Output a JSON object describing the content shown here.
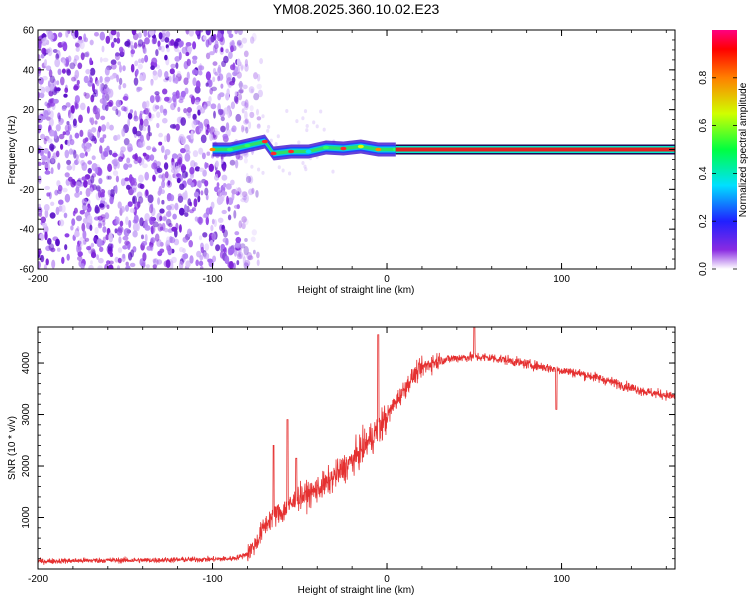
{
  "title": "YM08.2025.360.10.02.E23",
  "chart_data": [
    {
      "type": "heatmap",
      "xlabel": "Height of straight line (km)",
      "ylabel": "Frequency (Hz)",
      "xlim": [
        -200,
        165
      ],
      "ylim": [
        -60,
        60
      ],
      "x_ticks": [
        -200,
        -100,
        0,
        100
      ],
      "x_tick_labels": [
        "-200",
        "-100",
        "0",
        "100"
      ],
      "y_ticks": [
        60,
        40,
        20,
        0,
        -20,
        -40,
        -60
      ],
      "y_tick_labels": [
        "60",
        "40",
        "20",
        "0",
        "-20",
        "-40",
        "-60"
      ],
      "colorbar": {
        "label": "Normalized spectral amplitude",
        "range": [
          0,
          1
        ],
        "ticks": [
          0.0,
          0.2,
          0.4,
          0.6,
          0.8
        ],
        "tick_labels": [
          "0.0",
          "0.2",
          "0.4",
          "0.6",
          "0.8"
        ]
      },
      "noise_region_x": [
        -200,
        -80
      ],
      "signal_onset_x": -105,
      "steady_line_start_x": 5,
      "steady_line_freq": 0,
      "trace": [
        {
          "x": -100,
          "f": 0.0
        },
        {
          "x": -90,
          "f": 0.0
        },
        {
          "x": -80,
          "f": 2.0
        },
        {
          "x": -70,
          "f": 4.0
        },
        {
          "x": -65,
          "f": -2.0
        },
        {
          "x": -55,
          "f": -1.0
        },
        {
          "x": -45,
          "f": -1.0
        },
        {
          "x": -35,
          "f": 1.0
        },
        {
          "x": -25,
          "f": 0.5
        },
        {
          "x": -15,
          "f": 1.5
        },
        {
          "x": -5,
          "f": 0.0
        },
        {
          "x": 5,
          "f": 0.0
        }
      ]
    },
    {
      "type": "line",
      "xlabel": "Height of straight line (km)",
      "ylabel": "SNR (10 * v/v)",
      "xlim": [
        -200,
        165
      ],
      "ylim": [
        0,
        4700
      ],
      "x_ticks": [
        -200,
        -100,
        0,
        100
      ],
      "x_tick_labels": [
        "-200",
        "-100",
        "0",
        "100"
      ],
      "y_ticks": [
        1000,
        2000,
        3000,
        4000
      ],
      "y_tick_labels": [
        "1000",
        "2000",
        "3000",
        "4000"
      ],
      "color": "#e53030",
      "series": [
        {
          "name": "SNR",
          "x": [
            -200,
            -180,
            -160,
            -140,
            -120,
            -100,
            -90,
            -85,
            -80,
            -75,
            -70,
            -65,
            -60,
            -55,
            -50,
            -45,
            -40,
            -35,
            -30,
            -25,
            -20,
            -15,
            -10,
            -5,
            0,
            5,
            10,
            15,
            20,
            25,
            30,
            40,
            50,
            60,
            70,
            80,
            90,
            100,
            110,
            120,
            130,
            140,
            150,
            165
          ],
          "values": [
            150,
            160,
            170,
            170,
            180,
            190,
            200,
            230,
            300,
            500,
            850,
            1050,
            1100,
            1250,
            1400,
            1450,
            1550,
            1650,
            1800,
            1950,
            2100,
            2300,
            2500,
            2700,
            2950,
            3250,
            3500,
            3750,
            3900,
            4000,
            4050,
            4100,
            4120,
            4100,
            4050,
            3980,
            3920,
            3860,
            3800,
            3720,
            3620,
            3520,
            3430,
            3350
          ]
        }
      ],
      "spikes": [
        {
          "x": -65,
          "value": 2400
        },
        {
          "x": -57,
          "value": 2900
        },
        {
          "x": -52,
          "value": 2150
        },
        {
          "x": -5,
          "value": 4550
        },
        {
          "x": 50,
          "value": 4700
        },
        {
          "x": 97,
          "value": 3100
        }
      ]
    }
  ]
}
